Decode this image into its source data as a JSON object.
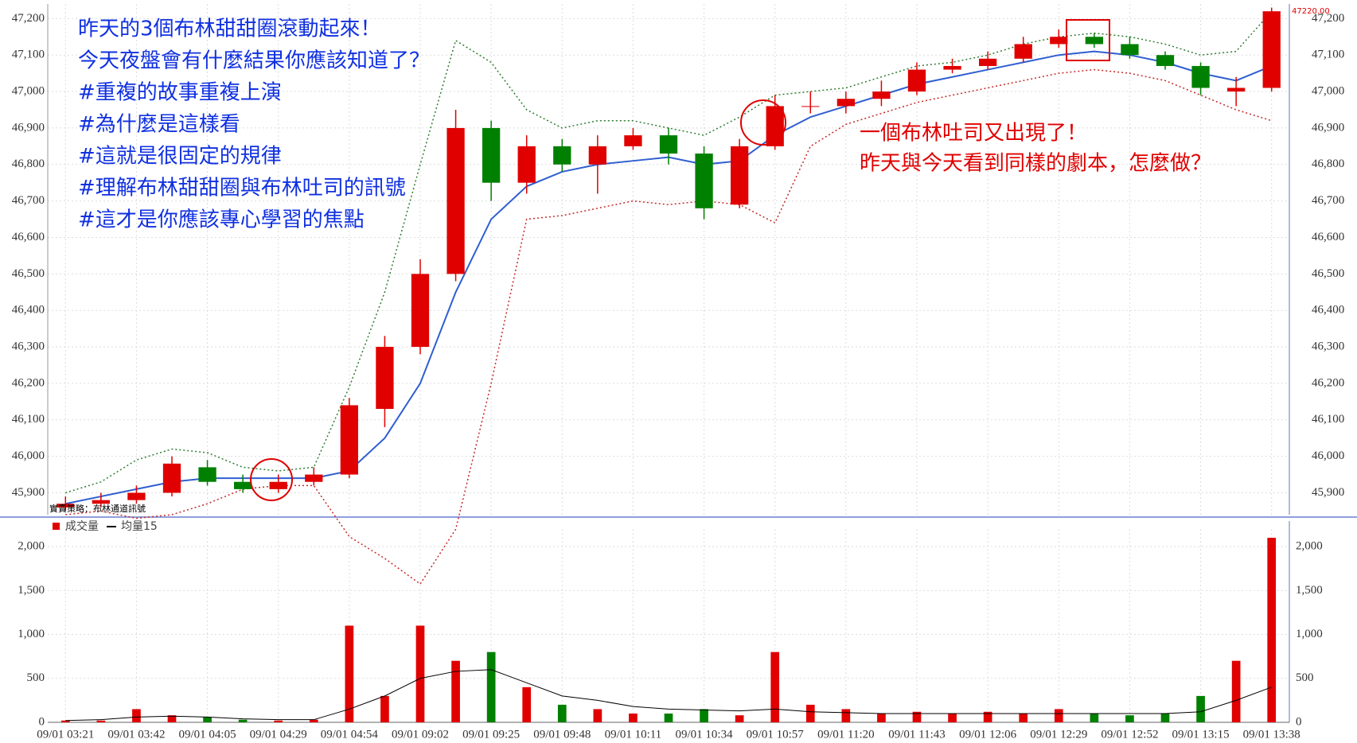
{
  "chart_data": [
    {
      "type": "candlestick",
      "annotations_blue": [
        "昨天的3個布林甜甜圈滾動起來！",
        "今天夜盤會有什麼結果你應該知道了？",
        "#重複的故事重複上演",
        "#為什麼是這樣看",
        "#這就是很固定的規律",
        "#理解布林甜甜圈與布林吐司的訊號",
        "#這才是你應該專心學習的焦點"
      ],
      "annotations_red": [
        "一個布林吐司又出現了！",
        "昨天與今天看到同樣的劇本，怎麼做？"
      ],
      "strategy_label": "實賣策略：布林通道訊號",
      "last_price": 47220,
      "last_price_label": "47220.00",
      "up_color": "#e00000",
      "down_color": "#008000",
      "open": [
        45860,
        45870,
        45880,
        45900,
        45970,
        45930,
        45910,
        45930,
        45950,
        46130,
        46300,
        46500,
        46900,
        46750,
        46850,
        46800,
        46850,
        46880,
        46830,
        46690,
        46850,
        46960,
        46960,
        46980,
        47000,
        47060,
        47070,
        47090,
        47130,
        47150,
        47130,
        47100,
        47070,
        47000,
        47010
      ],
      "high": [
        45890,
        45900,
        45920,
        46000,
        45990,
        45950,
        45950,
        45970,
        46160,
        46330,
        46540,
        46950,
        46920,
        46880,
        46870,
        46880,
        46900,
        46900,
        46850,
        46870,
        46990,
        47000,
        47000,
        47030,
        47080,
        47090,
        47110,
        47150,
        47170,
        47160,
        47150,
        47110,
        47080,
        47040,
        47230
      ],
      "low": [
        45850,
        45860,
        45870,
        45890,
        45920,
        45900,
        45900,
        45920,
        45940,
        46080,
        46280,
        46480,
        46700,
        46720,
        46780,
        46720,
        46840,
        46800,
        46650,
        46680,
        46840,
        46940,
        46940,
        46960,
        46990,
        47050,
        47060,
        47080,
        47120,
        47120,
        47090,
        47060,
        46990,
        46960,
        47000
      ],
      "close": [
        45870,
        45880,
        45900,
        45980,
        45930,
        45910,
        45930,
        45950,
        46140,
        46300,
        46500,
        46900,
        46750,
        46850,
        46800,
        46850,
        46880,
        46830,
        46680,
        46850,
        46960,
        46960,
        46980,
        47000,
        47060,
        47070,
        47090,
        47130,
        47150,
        47130,
        47100,
        47070,
        47010,
        47010,
        47220
      ],
      "ma": {
        "color": "#2f5fd0",
        "values": [
          45870,
          45890,
          45910,
          45930,
          45940,
          45940,
          45940,
          45940,
          45960,
          46050,
          46200,
          46450,
          46650,
          46740,
          46780,
          46800,
          46810,
          46820,
          46800,
          46810,
          46880,
          46930,
          46960,
          46990,
          47020,
          47040,
          47060,
          47080,
          47100,
          47110,
          47100,
          47080,
          47050,
          47030,
          47070
        ]
      },
      "upper": {
        "color": "#2e7d32",
        "values": [
          45900,
          45930,
          45990,
          46020,
          46010,
          45970,
          45960,
          45970,
          46190,
          46450,
          46800,
          47140,
          47080,
          46950,
          46900,
          46920,
          46920,
          46900,
          46880,
          46930,
          46990,
          47000,
          47010,
          47040,
          47070,
          47080,
          47100,
          47130,
          47150,
          47160,
          47150,
          47130,
          47100,
          47110,
          47220
        ]
      },
      "lower": {
        "color": "#c62828",
        "values": [
          45840,
          45850,
          45830,
          45840,
          45870,
          45910,
          45920,
          45920,
          45780,
          45720,
          45650,
          45800,
          46200,
          46650,
          46660,
          46680,
          46700,
          46690,
          46700,
          46690,
          46640,
          46850,
          46910,
          46940,
          46970,
          46990,
          47010,
          47030,
          47050,
          47060,
          47050,
          47030,
          46990,
          46950,
          46920
        ]
      },
      "ylim": [
        45840,
        47240
      ],
      "yticks": [
        {
          "value": 45900,
          "label": "45,900"
        },
        {
          "value": 46000,
          "label": "46,000"
        },
        {
          "value": 46100,
          "label": "46,100"
        },
        {
          "value": 46200,
          "label": "46,200"
        },
        {
          "value": 46300,
          "label": "46,300"
        },
        {
          "value": 46400,
          "label": "46,400"
        },
        {
          "value": 46500,
          "label": "46,500"
        },
        {
          "value": 46600,
          "label": "46,600"
        },
        {
          "value": 46700,
          "label": "46,700"
        },
        {
          "value": 46800,
          "label": "46,800"
        },
        {
          "value": 46900,
          "label": "46,900"
        },
        {
          "value": 47000,
          "label": "47,000"
        },
        {
          "value": 47100,
          "label": "47,100"
        },
        {
          "value": 47200,
          "label": "47,200"
        }
      ],
      "grid": true
    },
    {
      "type": "bar",
      "categories": [
        "09/01 03:21",
        null,
        "09/01 03:42",
        null,
        "09/01 04:05",
        null,
        "09/01 04:29",
        null,
        "09/01 04:54",
        null,
        "09/01 09:02",
        null,
        "09/01 09:25",
        null,
        "09/01 09:48",
        null,
        "09/01 10:11",
        null,
        "09/01 10:34",
        null,
        "09/01 10:57",
        null,
        "09/01 11:20",
        null,
        "09/01 11:43",
        null,
        "09/01 12:06",
        null,
        "09/01 12:29",
        null,
        "09/01 12:52",
        null,
        "09/01 13:15",
        null,
        "09/01 13:38"
      ],
      "series": [
        {
          "name": "成交量",
          "color": "#e00000",
          "values": [
            20,
            20,
            150,
            80,
            60,
            30,
            20,
            30,
            1100,
            300,
            1100,
            700,
            800,
            400,
            200,
            150,
            100,
            100,
            150,
            80,
            800,
            200,
            150,
            100,
            120,
            100,
            120,
            100,
            150,
            100,
            80,
            100,
            300,
            700,
            2100
          ]
        },
        {
          "name": "均量15",
          "color": "#000000",
          "values": [
            20,
            30,
            60,
            70,
            60,
            40,
            30,
            30,
            150,
            300,
            500,
            580,
            600,
            450,
            300,
            250,
            180,
            150,
            140,
            130,
            150,
            120,
            110,
            100,
            100,
            100,
            100,
            100,
            100,
            100,
            100,
            100,
            120,
            250,
            400
          ]
        }
      ],
      "ylim": [
        0,
        2200
      ],
      "yticks": [
        0,
        500,
        {
          "value": 1000,
          "label": "1,000"
        },
        {
          "value": 1500,
          "label": "1,500"
        },
        {
          "value": 2000,
          "label": "2,000"
        }
      ],
      "grid": true
    }
  ]
}
